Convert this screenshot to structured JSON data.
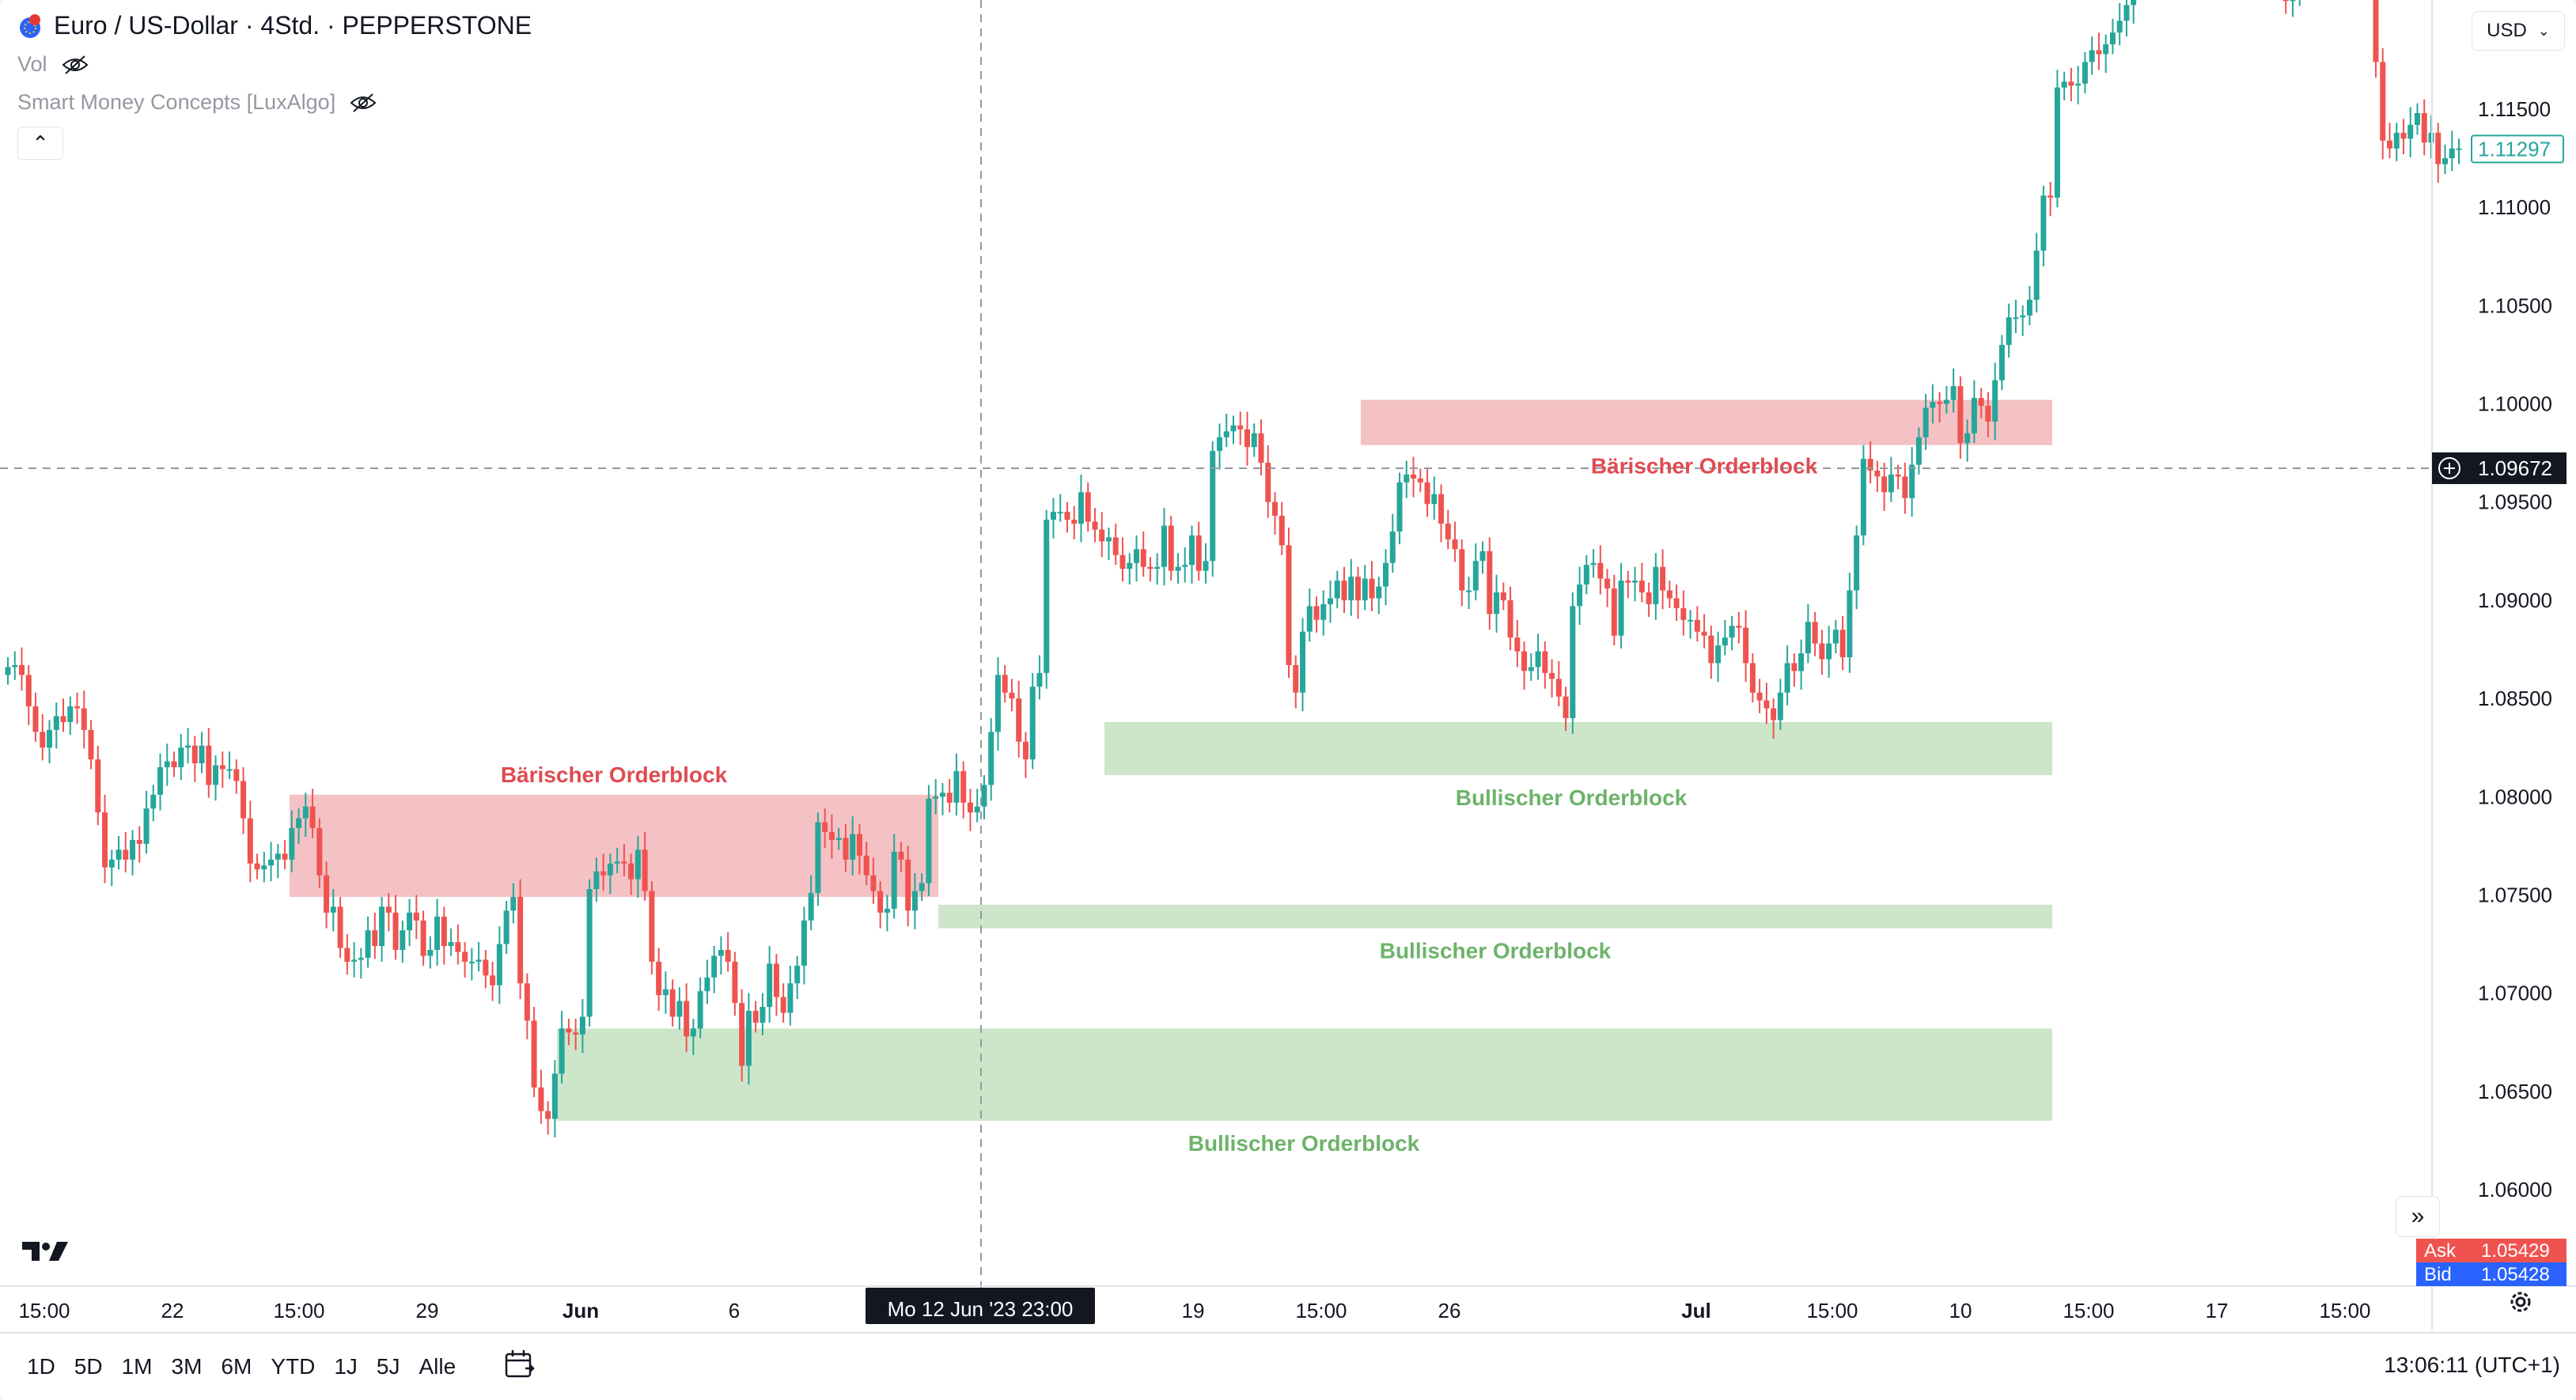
{
  "header": {
    "symbol_title": "Euro / US-Dollar · 4Std. · PEPPERSTONE",
    "indicators": [
      {
        "label": "Vol"
      },
      {
        "label": "Smart Money Concepts [LuxAlgo]"
      }
    ]
  },
  "currency_selector": {
    "value": "USD"
  },
  "price_scale": {
    "ticks": [
      "1.11500",
      "1.11000",
      "1.10500",
      "1.10000",
      "1.09500",
      "1.09000",
      "1.08500",
      "1.08000",
      "1.07500",
      "1.07000",
      "1.06500",
      "1.06000"
    ],
    "last_price": "1.11297",
    "crosshair_price": "1.09672",
    "ask_label": "Ask",
    "ask_price": "1.05429",
    "bid_label": "Bid",
    "bid_price": "1.05428"
  },
  "time_scale": {
    "labels": [
      "15:00",
      "22",
      "15:00",
      "29",
      "Jun",
      "6",
      "19",
      "15:00",
      "26",
      "Jul",
      "15:00",
      "10",
      "15:00",
      "17",
      "15:00"
    ],
    "crosshair_time": "Mo 12 Jun '23   23:00"
  },
  "order_blocks": [
    {
      "label": "Bärischer Orderblock",
      "type": "bearish",
      "top": 1.1002,
      "bottom": 1.0979
    },
    {
      "label": "Bärischer Orderblock",
      "type": "bearish",
      "top": 1.0801,
      "bottom": 1.0749
    },
    {
      "label": "Bullischer Orderblock",
      "type": "bullish",
      "top": 1.0838,
      "bottom": 1.0811
    },
    {
      "label": "Bullischer Orderblock",
      "type": "bullish",
      "top": 1.0745,
      "bottom": 1.0733
    },
    {
      "label": "Bullischer Orderblock",
      "type": "bullish",
      "top": 1.0682,
      "bottom": 1.0635
    }
  ],
  "colors": {
    "bullish": "#26a69a",
    "bearish": "#ef5350",
    "bull_zone": "#cde6c9",
    "bear_zone": "#f4c2c4",
    "bull_text": "#6db36a",
    "bear_text": "#e04b52"
  },
  "bottom_bar": {
    "ranges": [
      "1D",
      "5D",
      "1M",
      "3M",
      "6M",
      "YTD",
      "1J",
      "5J",
      "Alle"
    ],
    "clock": "13:06:11 (UTC+1)"
  },
  "icons": [
    "symbol-flag-icon",
    "eye-hidden-icon",
    "chevron-up-icon",
    "chevron-down-icon",
    "crosshair-plus-icon",
    "double-chevron-right-icon",
    "tradingview-logo-icon",
    "calendar-icon",
    "gear-icon"
  ],
  "chart_data": {
    "type": "candlestick",
    "series": [
      {
        "name": "Euro / US-Dollar · 4Std. · PEPPERSTONE",
        "close": [
          1.0866,
          1.0867,
          1.0862,
          1.0846,
          1.0833,
          1.0825,
          1.0834,
          1.0841,
          1.0838,
          1.0846,
          1.0845,
          1.0834,
          1.0819,
          1.0792,
          1.0764,
          1.0768,
          1.0773,
          1.0768,
          1.0778,
          1.0776,
          1.0794,
          1.0801,
          1.0815,
          1.0818,
          1.0815,
          1.0825,
          1.0826,
          1.0817,
          1.0826,
          1.0806,
          1.0816,
          1.0814,
          1.0814,
          1.0808,
          1.0789,
          1.0766,
          1.0763,
          1.0765,
          1.0768,
          1.0771,
          1.0768,
          1.0784,
          1.0789,
          1.0795,
          1.0784,
          1.076,
          1.0741,
          1.0744,
          1.0723,
          1.0716,
          1.0717,
          1.0718,
          1.0732,
          1.0724,
          1.0744,
          1.0741,
          1.0722,
          1.0732,
          1.0741,
          1.0737,
          1.0719,
          1.0722,
          1.0739,
          1.0724,
          1.0726,
          1.0721,
          1.0716,
          1.0716,
          1.0717,
          1.0709,
          1.0704,
          1.0725,
          1.0742,
          1.0749,
          1.0705,
          1.0686,
          1.0652,
          1.064,
          1.0636,
          1.0659,
          1.0682,
          1.068,
          1.0679,
          1.0688,
          1.0753,
          1.0762,
          1.076,
          1.0766,
          1.0767,
          1.0766,
          1.0758,
          1.0773,
          1.0752,
          1.0716,
          1.0699,
          1.0702,
          1.0688,
          1.0696,
          1.0678,
          1.0682,
          1.0701,
          1.0708,
          1.0719,
          1.0722,
          1.0716,
          1.0695,
          1.0663,
          1.0691,
          1.0685,
          1.0693,
          1.0715,
          1.0698,
          1.069,
          1.0705,
          1.0714,
          1.0737,
          1.0751,
          1.0787,
          1.0782,
          1.0778,
          1.0779,
          1.0768,
          1.0781,
          1.077,
          1.076,
          1.0752,
          1.0741,
          1.0743,
          1.0772,
          1.0768,
          1.0742,
          1.0752,
          1.0756,
          1.0799,
          1.08,
          1.0802,
          1.0797,
          1.0813,
          1.0797,
          1.0792,
          1.0795,
          1.0806,
          1.0833,
          1.0862,
          1.0853,
          1.085,
          1.0828,
          1.0819,
          1.0856,
          1.0863,
          1.0941,
          1.0945,
          1.0945,
          1.0941,
          1.0939,
          1.0955,
          1.094,
          1.0936,
          1.093,
          1.0932,
          1.0923,
          1.0916,
          1.0919,
          1.0926,
          1.0917,
          1.0916,
          1.0917,
          1.0938,
          1.0915,
          1.0917,
          1.0918,
          1.0933,
          1.0915,
          1.092,
          1.0976,
          1.0983,
          1.0986,
          1.0989,
          1.0987,
          1.0978,
          1.0985,
          1.097,
          1.095,
          1.0943,
          1.0928,
          1.0867,
          1.0853,
          1.0884,
          1.0897,
          1.089,
          1.0898,
          1.0901,
          1.091,
          1.09,
          1.0912,
          1.09,
          1.0911,
          1.0901,
          1.0907,
          1.0919,
          1.0935,
          1.096,
          1.0964,
          1.0962,
          1.096,
          1.0949,
          1.0954,
          1.0939,
          1.0931,
          1.0926,
          1.0905,
          1.0905,
          1.092,
          1.0925,
          1.0893,
          1.0904,
          1.09,
          1.0881,
          1.0874,
          1.0864,
          1.0866,
          1.0874,
          1.0863,
          1.086,
          1.0851,
          1.084,
          1.0897,
          1.0908,
          1.0918,
          1.0919,
          1.0911,
          1.0906,
          1.0882,
          1.091,
          1.0909,
          1.091,
          1.0904,
          1.0898,
          1.0917,
          1.0905,
          1.0901,
          1.0896,
          1.089,
          1.089,
          1.0884,
          1.0882,
          1.0868,
          1.0877,
          1.0881,
          1.0887,
          1.0886,
          1.0868,
          1.0853,
          1.0849,
          1.0845,
          1.0839,
          1.0853,
          1.0868,
          1.0864,
          1.0873,
          1.0889,
          1.0878,
          1.087,
          1.0878,
          1.0885,
          1.0871,
          1.0905,
          1.0933,
          1.0972,
          1.0966,
          1.0963,
          1.0955,
          1.0964,
          1.0963,
          1.0952,
          1.0969,
          1.0983,
          1.0998,
          1.1001,
          1.1,
          1.1002,
          1.1009,
          1.098,
          1.0985,
          1.1003,
          1.0999,
          1.0991,
          1.1012,
          1.103,
          1.1044,
          1.1044,
          1.1045,
          1.1053,
          1.1078,
          1.1106,
          1.1105,
          1.1161,
          1.1164,
          1.1162,
          1.1163,
          1.1174,
          1.118,
          1.1178,
          1.1183,
          1.1189,
          1.1195,
          1.1203,
          1.1224,
          1.1238,
          1.1242,
          1.1254,
          1.1235,
          1.1221,
          1.1244,
          1.1231,
          1.1235,
          1.1245,
          1.1246,
          1.123,
          1.1236,
          1.1241,
          1.1242,
          1.1232,
          1.1225,
          1.1221,
          1.1227,
          1.123,
          1.1232,
          1.1221,
          1.1205,
          1.1212,
          1.1217,
          1.1228,
          1.1239,
          1.1224,
          1.1223,
          1.1223,
          1.1232,
          1.1234,
          1.1232,
          1.1224,
          1.1212,
          1.1174,
          1.1134,
          1.113,
          1.1138,
          1.1135,
          1.1142,
          1.1148,
          1.1133,
          1.1138,
          1.1122,
          1.1125,
          1.113,
          1.113
        ]
      }
    ]
  }
}
